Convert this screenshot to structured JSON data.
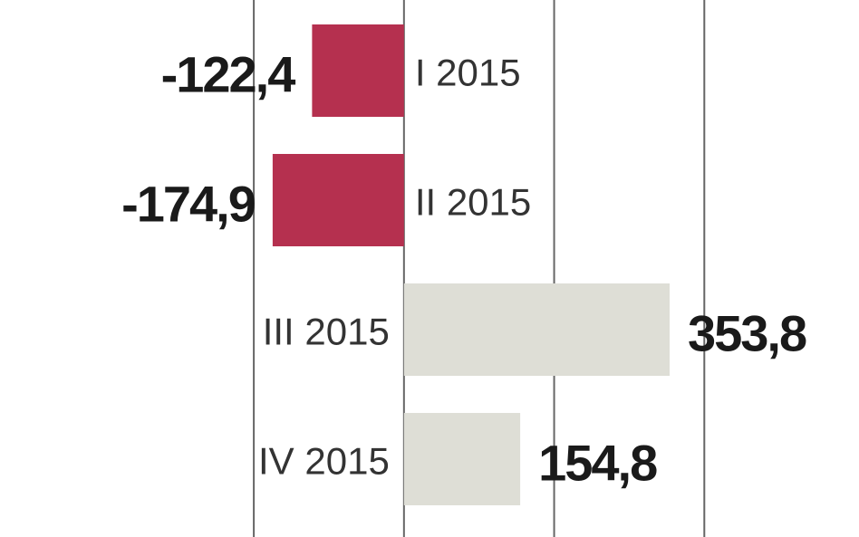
{
  "chart_data": {
    "type": "hbar",
    "categories": [
      "I 2015",
      "II 2015",
      "III 2015",
      "IV 2015"
    ],
    "values": [
      -122.4,
      -174.9,
      353.8,
      154.8
    ],
    "value_labels": [
      "-122,4",
      "-174,9",
      "353,8",
      "154,8"
    ],
    "colors": [
      "#b5304f",
      "#b5304f",
      "#deded6",
      "#deded6"
    ],
    "xlim": [
      -538,
      606
    ],
    "xticks": [
      -200,
      0,
      200,
      400
    ],
    "grid": true
  }
}
